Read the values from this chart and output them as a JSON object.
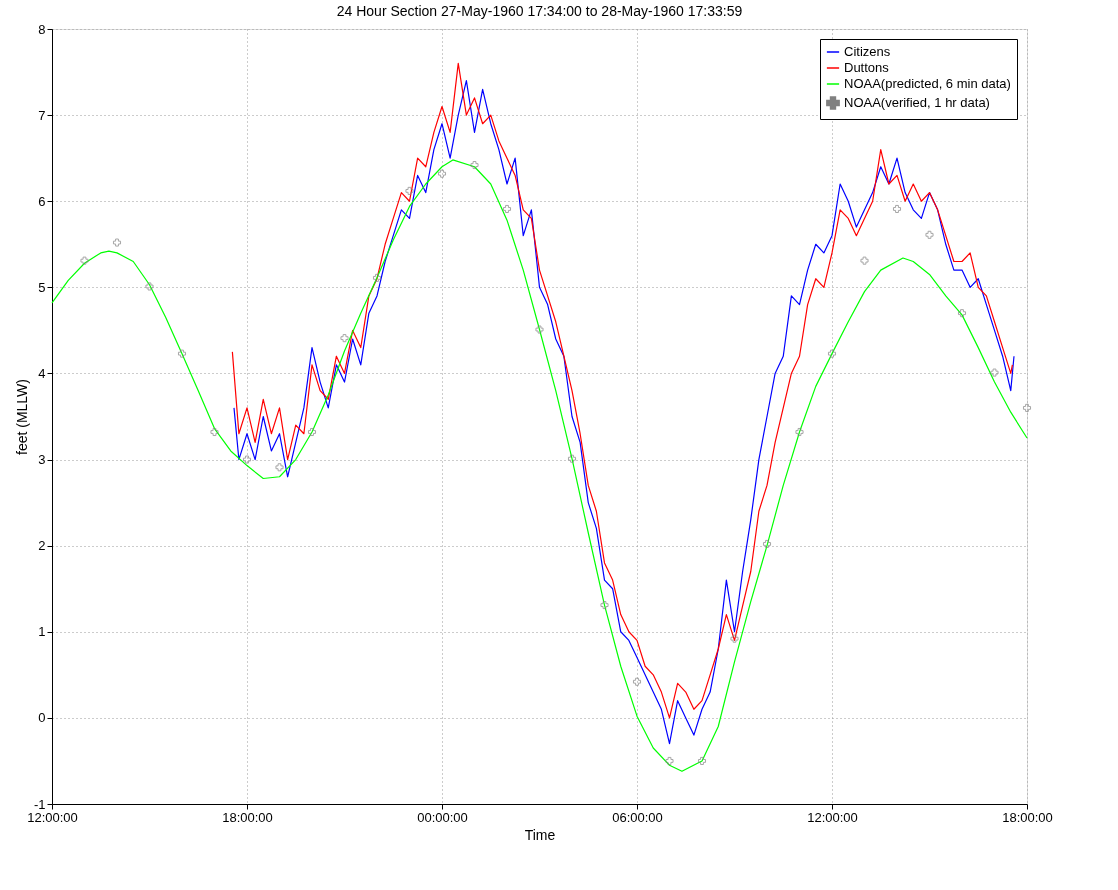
{
  "chart_data": {
    "type": "line",
    "title": "24 Hour Section 27-May-1960 17:34:00 to 28-May-1960 17:33:59",
    "xlabel": "Time",
    "ylabel": "feet (MLLW)",
    "xlim": [
      "1960-05-27T12:00",
      "1960-05-28T18:00"
    ],
    "xticks": [
      {
        "value": "1960-05-27T12:00",
        "label": "12:00:00"
      },
      {
        "value": "1960-05-27T18:00",
        "label": "18:00:00"
      },
      {
        "value": "1960-05-28T00:00",
        "label": "00:00:00"
      },
      {
        "value": "1960-05-28T06:00",
        "label": "06:00:00"
      },
      {
        "value": "1960-05-28T12:00",
        "label": "12:00:00"
      },
      {
        "value": "1960-05-28T18:00",
        "label": "18:00:00"
      }
    ],
    "ylim": [
      -1,
      8
    ],
    "yticks": [
      -1,
      0,
      1,
      2,
      3,
      4,
      5,
      6,
      7,
      8
    ],
    "grid": true,
    "legend": "top right",
    "series": [
      {
        "name": "Citizens",
        "type": "line",
        "color": "#0000ff",
        "x": [
          "1960-05-27T17:36",
          "1960-05-27T17:45",
          "1960-05-27T18:00",
          "1960-05-27T18:15",
          "1960-05-27T18:30",
          "1960-05-27T18:45",
          "1960-05-27T19:00",
          "1960-05-27T19:15",
          "1960-05-27T19:30",
          "1960-05-27T19:45",
          "1960-05-27T20:00",
          "1960-05-27T20:15",
          "1960-05-27T20:30",
          "1960-05-27T20:45",
          "1960-05-27T21:00",
          "1960-05-27T21:15",
          "1960-05-27T21:30",
          "1960-05-27T21:45",
          "1960-05-27T22:00",
          "1960-05-27T22:15",
          "1960-05-27T22:30",
          "1960-05-27T22:45",
          "1960-05-27T23:00",
          "1960-05-27T23:15",
          "1960-05-27T23:30",
          "1960-05-27T23:45",
          "1960-05-28T00:00",
          "1960-05-28T00:15",
          "1960-05-28T00:30",
          "1960-05-28T00:45",
          "1960-05-28T01:00",
          "1960-05-28T01:15",
          "1960-05-28T01:30",
          "1960-05-28T01:45",
          "1960-05-28T02:00",
          "1960-05-28T02:15",
          "1960-05-28T02:30",
          "1960-05-28T02:45",
          "1960-05-28T03:00",
          "1960-05-28T03:15",
          "1960-05-28T03:30",
          "1960-05-28T03:45",
          "1960-05-28T04:00",
          "1960-05-28T04:15",
          "1960-05-28T04:30",
          "1960-05-28T04:45",
          "1960-05-28T05:00",
          "1960-05-28T05:15",
          "1960-05-28T05:30",
          "1960-05-28T05:45",
          "1960-05-28T06:00",
          "1960-05-28T06:15",
          "1960-05-28T06:30",
          "1960-05-28T06:45",
          "1960-05-28T07:00",
          "1960-05-28T07:15",
          "1960-05-28T07:30",
          "1960-05-28T07:45",
          "1960-05-28T08:00",
          "1960-05-28T08:15",
          "1960-05-28T08:30",
          "1960-05-28T08:45",
          "1960-05-28T09:00",
          "1960-05-28T09:15",
          "1960-05-28T09:30",
          "1960-05-28T09:45",
          "1960-05-28T10:00",
          "1960-05-28T10:15",
          "1960-05-28T10:30",
          "1960-05-28T10:45",
          "1960-05-28T11:00",
          "1960-05-28T11:15",
          "1960-05-28T11:30",
          "1960-05-28T11:45",
          "1960-05-28T12:00",
          "1960-05-28T12:15",
          "1960-05-28T12:30",
          "1960-05-28T12:45",
          "1960-05-28T13:00",
          "1960-05-28T13:15",
          "1960-05-28T13:30",
          "1960-05-28T13:45",
          "1960-05-28T14:00",
          "1960-05-28T14:15",
          "1960-05-28T14:30",
          "1960-05-28T14:45",
          "1960-05-28T15:00",
          "1960-05-28T15:15",
          "1960-05-28T15:30",
          "1960-05-28T15:45",
          "1960-05-28T16:00",
          "1960-05-28T16:15",
          "1960-05-28T16:30",
          "1960-05-28T16:45",
          "1960-05-28T17:00",
          "1960-05-28T17:15",
          "1960-05-28T17:30",
          "1960-05-28T17:36"
        ],
        "values": [
          3.6,
          3.0,
          3.3,
          3.0,
          3.5,
          3.1,
          3.3,
          2.8,
          3.2,
          3.6,
          4.3,
          3.9,
          3.6,
          4.1,
          3.9,
          4.4,
          4.1,
          4.7,
          4.9,
          5.3,
          5.6,
          5.9,
          5.8,
          6.3,
          6.1,
          6.6,
          6.9,
          6.5,
          7.0,
          7.4,
          6.8,
          7.3,
          6.9,
          6.6,
          6.2,
          6.5,
          5.6,
          5.9,
          5.0,
          4.8,
          4.4,
          4.2,
          3.5,
          3.2,
          2.5,
          2.2,
          1.6,
          1.5,
          1.0,
          0.9,
          0.7,
          0.5,
          0.3,
          0.1,
          -0.3,
          0.2,
          0.0,
          -0.2,
          0.1,
          0.3,
          0.8,
          1.6,
          1.0,
          1.7,
          2.3,
          3.0,
          3.5,
          4.0,
          4.2,
          4.9,
          4.8,
          5.2,
          5.5,
          5.4,
          5.6,
          6.2,
          6.0,
          5.7,
          5.9,
          6.1,
          6.4,
          6.2,
          6.5,
          6.1,
          5.9,
          5.8,
          6.1,
          5.9,
          5.5,
          5.2,
          5.2,
          5.0,
          5.1,
          4.8,
          4.5,
          4.2,
          3.8,
          4.2
        ]
      },
      {
        "name": "Duttons",
        "type": "line",
        "color": "#ff0000",
        "x": [
          "1960-05-27T17:33",
          "1960-05-27T17:45",
          "1960-05-27T18:00",
          "1960-05-27T18:15",
          "1960-05-27T18:30",
          "1960-05-27T18:45",
          "1960-05-27T19:00",
          "1960-05-27T19:15",
          "1960-05-27T19:30",
          "1960-05-27T19:45",
          "1960-05-27T20:00",
          "1960-05-27T20:15",
          "1960-05-27T20:30",
          "1960-05-27T20:45",
          "1960-05-27T21:00",
          "1960-05-27T21:15",
          "1960-05-27T21:30",
          "1960-05-27T21:45",
          "1960-05-27T22:00",
          "1960-05-27T22:15",
          "1960-05-27T22:30",
          "1960-05-27T22:45",
          "1960-05-27T23:00",
          "1960-05-27T23:15",
          "1960-05-27T23:30",
          "1960-05-27T23:45",
          "1960-05-28T00:00",
          "1960-05-28T00:15",
          "1960-05-28T00:30",
          "1960-05-28T00:45",
          "1960-05-28T01:00",
          "1960-05-28T01:15",
          "1960-05-28T01:30",
          "1960-05-28T01:45",
          "1960-05-28T02:00",
          "1960-05-28T02:15",
          "1960-05-28T02:30",
          "1960-05-28T02:45",
          "1960-05-28T03:00",
          "1960-05-28T03:15",
          "1960-05-28T03:30",
          "1960-05-28T03:45",
          "1960-05-28T04:00",
          "1960-05-28T04:15",
          "1960-05-28T04:30",
          "1960-05-28T04:45",
          "1960-05-28T05:00",
          "1960-05-28T05:15",
          "1960-05-28T05:30",
          "1960-05-28T05:45",
          "1960-05-28T06:00",
          "1960-05-28T06:15",
          "1960-05-28T06:30",
          "1960-05-28T06:45",
          "1960-05-28T07:00",
          "1960-05-28T07:15",
          "1960-05-28T07:30",
          "1960-05-28T07:45",
          "1960-05-28T08:00",
          "1960-05-28T08:15",
          "1960-05-28T08:30",
          "1960-05-28T08:45",
          "1960-05-28T09:00",
          "1960-05-28T09:15",
          "1960-05-28T09:30",
          "1960-05-28T09:45",
          "1960-05-28T10:00",
          "1960-05-28T10:15",
          "1960-05-28T10:30",
          "1960-05-28T10:45",
          "1960-05-28T11:00",
          "1960-05-28T11:15",
          "1960-05-28T11:30",
          "1960-05-28T11:45",
          "1960-05-28T12:00",
          "1960-05-28T12:15",
          "1960-05-28T12:30",
          "1960-05-28T12:45",
          "1960-05-28T13:00",
          "1960-05-28T13:15",
          "1960-05-28T13:30",
          "1960-05-28T13:45",
          "1960-05-28T14:00",
          "1960-05-28T14:15",
          "1960-05-28T14:30",
          "1960-05-28T14:45",
          "1960-05-28T15:00",
          "1960-05-28T15:15",
          "1960-05-28T15:30",
          "1960-05-28T15:45",
          "1960-05-28T16:00",
          "1960-05-28T16:15",
          "1960-05-28T16:30",
          "1960-05-28T16:45",
          "1960-05-28T17:00",
          "1960-05-28T17:15",
          "1960-05-28T17:30",
          "1960-05-28T17:33"
        ],
        "values": [
          4.25,
          3.3,
          3.6,
          3.2,
          3.7,
          3.3,
          3.6,
          3.0,
          3.4,
          3.3,
          4.1,
          3.8,
          3.7,
          4.2,
          4.0,
          4.5,
          4.3,
          4.9,
          5.1,
          5.5,
          5.8,
          6.1,
          6.0,
          6.5,
          6.4,
          6.8,
          7.1,
          6.8,
          7.6,
          7.0,
          7.2,
          6.9,
          7.0,
          6.7,
          6.5,
          6.3,
          5.9,
          5.8,
          5.2,
          4.9,
          4.6,
          4.2,
          3.8,
          3.3,
          2.7,
          2.4,
          1.8,
          1.6,
          1.2,
          1.0,
          0.9,
          0.6,
          0.5,
          0.3,
          0.0,
          0.4,
          0.3,
          0.1,
          0.2,
          0.5,
          0.8,
          1.2,
          0.9,
          1.3,
          1.7,
          2.4,
          2.7,
          3.2,
          3.6,
          4.0,
          4.2,
          4.8,
          5.1,
          5.0,
          5.4,
          5.9,
          5.8,
          5.6,
          5.8,
          6.0,
          6.6,
          6.2,
          6.3,
          6.0,
          6.2,
          6.0,
          6.1,
          5.9,
          5.6,
          5.3,
          5.3,
          5.4,
          5.0,
          4.9,
          4.6,
          4.3,
          4.0,
          4.1
        ]
      },
      {
        "name": "NOAA(predicted, 6 min data)",
        "type": "line",
        "color": "#00ff00",
        "x": [
          "1960-05-27T12:00",
          "1960-05-27T12:30",
          "1960-05-27T13:00",
          "1960-05-27T13:30",
          "1960-05-27T13:45",
          "1960-05-27T14:00",
          "1960-05-27T14:30",
          "1960-05-27T15:00",
          "1960-05-27T15:30",
          "1960-05-27T16:00",
          "1960-05-27T16:30",
          "1960-05-27T17:00",
          "1960-05-27T17:30",
          "1960-05-27T18:00",
          "1960-05-27T18:30",
          "1960-05-27T19:00",
          "1960-05-27T19:30",
          "1960-05-27T20:00",
          "1960-05-27T20:30",
          "1960-05-27T21:00",
          "1960-05-27T21:30",
          "1960-05-27T22:00",
          "1960-05-27T22:30",
          "1960-05-27T23:00",
          "1960-05-27T23:30",
          "1960-05-28T00:00",
          "1960-05-28T00:20",
          "1960-05-28T01:00",
          "1960-05-28T01:30",
          "1960-05-28T02:00",
          "1960-05-28T02:30",
          "1960-05-28T03:00",
          "1960-05-28T03:30",
          "1960-05-28T04:00",
          "1960-05-28T04:30",
          "1960-05-28T05:00",
          "1960-05-28T05:30",
          "1960-05-28T06:00",
          "1960-05-28T06:30",
          "1960-05-28T07:00",
          "1960-05-28T07:23",
          "1960-05-28T08:00",
          "1960-05-28T08:30",
          "1960-05-28T09:00",
          "1960-05-28T09:30",
          "1960-05-28T10:00",
          "1960-05-28T10:30",
          "1960-05-28T11:00",
          "1960-05-28T11:30",
          "1960-05-28T12:00",
          "1960-05-28T12:30",
          "1960-05-28T13:00",
          "1960-05-28T13:30",
          "1960-05-28T14:11",
          "1960-05-28T14:30",
          "1960-05-28T15:00",
          "1960-05-28T15:30",
          "1960-05-28T16:00",
          "1960-05-28T16:30",
          "1960-05-28T17:00",
          "1960-05-28T17:30",
          "1960-05-28T18:00"
        ],
        "values": [
          4.82,
          5.08,
          5.28,
          5.4,
          5.42,
          5.4,
          5.3,
          5.03,
          4.65,
          4.23,
          3.8,
          3.36,
          3.1,
          2.93,
          2.78,
          2.8,
          3.0,
          3.32,
          3.75,
          4.26,
          4.7,
          5.11,
          5.55,
          5.94,
          6.2,
          6.4,
          6.48,
          6.4,
          6.2,
          5.78,
          5.2,
          4.51,
          3.8,
          3.01,
          2.15,
          1.31,
          0.6,
          0.02,
          -0.35,
          -0.55,
          -0.62,
          -0.5,
          -0.1,
          0.65,
          1.35,
          2.0,
          2.7,
          3.32,
          3.85,
          4.23,
          4.6,
          4.95,
          5.2,
          5.34,
          5.3,
          5.15,
          4.9,
          4.68,
          4.3,
          3.9,
          3.55,
          3.25
        ]
      },
      {
        "name": "NOAA(verified, 1 hr data)",
        "type": "scatter",
        "marker": "cross",
        "color": "#808080",
        "x": [
          "1960-05-27T13:00",
          "1960-05-27T14:00",
          "1960-05-27T15:00",
          "1960-05-27T16:00",
          "1960-05-27T17:00",
          "1960-05-27T18:00",
          "1960-05-27T19:00",
          "1960-05-27T20:00",
          "1960-05-27T21:00",
          "1960-05-27T22:00",
          "1960-05-27T23:00",
          "1960-05-28T00:00",
          "1960-05-28T01:00",
          "1960-05-28T02:00",
          "1960-05-28T03:00",
          "1960-05-28T04:00",
          "1960-05-28T05:00",
          "1960-05-28T06:00",
          "1960-05-28T07:00",
          "1960-05-28T08:00",
          "1960-05-28T09:00",
          "1960-05-28T10:00",
          "1960-05-28T11:00",
          "1960-05-28T12:00",
          "1960-05-28T13:00",
          "1960-05-28T14:00",
          "1960-05-28T15:00",
          "1960-05-28T16:00",
          "1960-05-28T17:00",
          "1960-05-28T18:00"
        ],
        "values": [
          5.31,
          5.52,
          5.01,
          4.23,
          3.32,
          3.0,
          2.91,
          3.32,
          4.41,
          5.11,
          6.12,
          6.32,
          6.42,
          5.91,
          4.51,
          3.01,
          1.31,
          0.42,
          -0.5,
          -0.5,
          0.92,
          2.02,
          3.32,
          4.23,
          5.31,
          5.91,
          5.61,
          4.7,
          4.01,
          3.6
        ]
      }
    ]
  }
}
